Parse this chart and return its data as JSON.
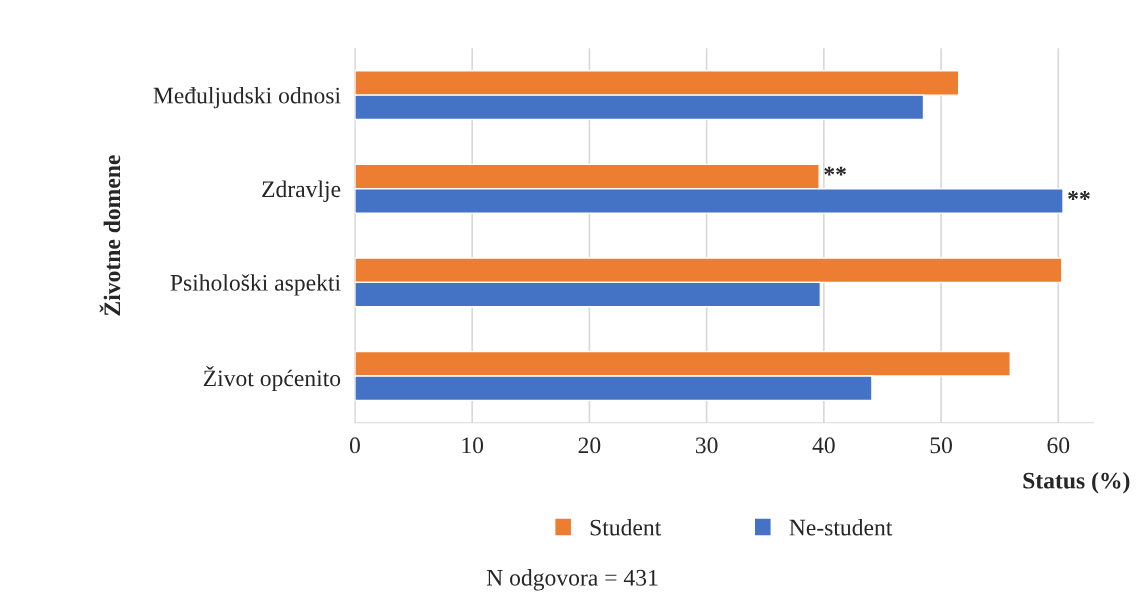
{
  "chart_data": {
    "type": "bar",
    "orientation": "horizontal",
    "xlabel": "Status (%)",
    "ylabel": "Životne domene",
    "categories": [
      "Međuljudski odnosi",
      "Zdravlje",
      "Psihološki aspekti",
      "Život općenito"
    ],
    "series": [
      {
        "name": "Student",
        "color": "#ed7d31",
        "values": [
          51.5,
          39.6,
          60.3,
          55.9
        ]
      },
      {
        "name": "Ne-student",
        "color": "#4472c4",
        "values": [
          48.5,
          60.4,
          39.7,
          44.1
        ]
      }
    ],
    "xlim": [
      0,
      63
    ],
    "xticks": [
      0,
      10,
      20,
      30,
      40,
      50,
      60
    ],
    "grid": "x",
    "legend": "bottom",
    "annotations": [
      {
        "text": "**",
        "x": 39.6,
        "y": "Zdravlje"
      },
      {
        "text": "**",
        "x": 60.4,
        "y": "Zdravlje"
      },
      "N odgovora = 431"
    ]
  }
}
